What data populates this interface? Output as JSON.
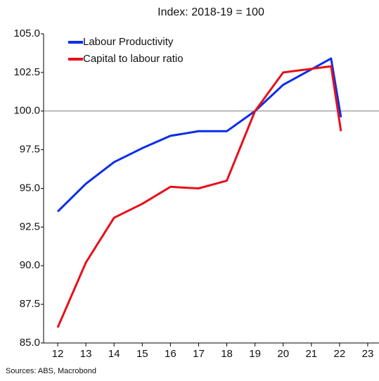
{
  "chart_data": {
    "type": "line",
    "title": "Index: 2018-19 = 100",
    "x": [
      12,
      13,
      14,
      15,
      16,
      17,
      18,
      19,
      20,
      21.7,
      22.05
    ],
    "series": [
      {
        "name": "Labour Productivity",
        "color": "#0a2ee8",
        "values": [
          93.5,
          95.3,
          96.7,
          97.6,
          98.4,
          98.7,
          98.7,
          100.0,
          101.7,
          103.4,
          99.6
        ]
      },
      {
        "name": "Capital to labour ratio",
        "color": "#e8101a",
        "values": [
          86.0,
          90.2,
          93.1,
          94.0,
          95.1,
          95.0,
          95.5,
          100.0,
          102.5,
          102.9,
          98.7
        ]
      }
    ],
    "xlim": [
      11.5,
      23.4
    ],
    "xticks": [
      12,
      13,
      14,
      15,
      16,
      17,
      18,
      19,
      20,
      21,
      22,
      23
    ],
    "ylim": [
      85,
      105
    ],
    "yticks": [
      {
        "value": 85,
        "label": "85.0"
      },
      {
        "value": 87.5,
        "label": "87.5"
      },
      {
        "value": 90,
        "label": "90.0"
      },
      {
        "value": 92.5,
        "label": "92.5"
      },
      {
        "value": 95,
        "label": "95.0"
      },
      {
        "value": 97.5,
        "label": "97.5"
      },
      {
        "value": 100,
        "label": "100.0"
      },
      {
        "value": 102.5,
        "label": "102.5"
      },
      {
        "value": 105,
        "label": "105.0"
      }
    ],
    "reference_line": 100,
    "legend": "upper left",
    "source": "Sources: ABS, Macrobond"
  }
}
